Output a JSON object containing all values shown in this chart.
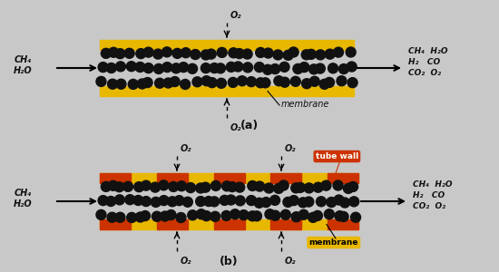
{
  "bg_color": "#c8c8c8",
  "panel_bg": "#f0f0f0",
  "yellow_color": "#e8b800",
  "orange_color": "#cc3300",
  "black_color": "#111111",
  "text_color": "#111111",
  "label_a": "(a)",
  "label_b": "(b)",
  "inlet_a_line1": "CH₄",
  "inlet_a_line2": "H₂O",
  "inlet_b_line1": "CH₄",
  "inlet_b_line2": "H₂O",
  "outlet_line1": "CH₄  H₂O",
  "outlet_line2": "H₂   CO",
  "outlet_line3": "CO₂  O₂",
  "o2": "O₂",
  "membrane_label": "membrane",
  "tube_wall_label": "tube wall"
}
